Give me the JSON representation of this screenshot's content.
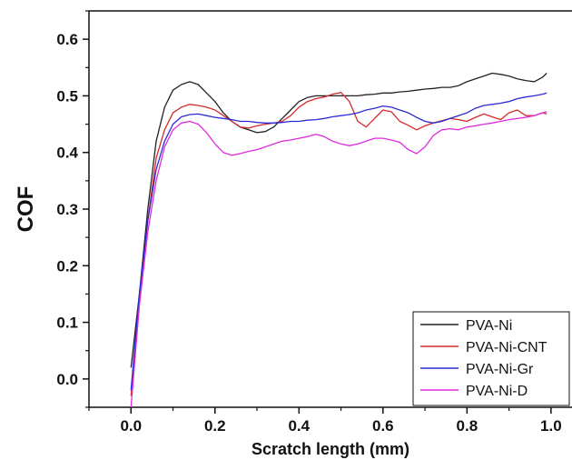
{
  "chart_data": {
    "type": "line",
    "title": "",
    "xlabel": "Scratch length (mm)",
    "ylabel": "COF",
    "xlim": [
      -0.1,
      1.05
    ],
    "ylim": [
      -0.05,
      0.65
    ],
    "xticks": [
      0.0,
      0.2,
      0.4,
      0.6,
      0.8,
      1.0
    ],
    "xtick_labels": [
      "0.0",
      "0.2",
      "0.4",
      "0.6",
      "0.8",
      "1.0"
    ],
    "yticks": [
      0.0,
      0.1,
      0.2,
      0.3,
      0.4,
      0.5,
      0.6
    ],
    "ytick_labels": [
      "0.0",
      "0.1",
      "0.2",
      "0.3",
      "0.4",
      "0.5",
      "0.6"
    ],
    "grid": false,
    "legend_position": "bottom-right",
    "series": [
      {
        "name": "PVA-Ni",
        "color": "#222222",
        "x": [
          0.0,
          0.02,
          0.04,
          0.06,
          0.08,
          0.1,
          0.12,
          0.14,
          0.16,
          0.18,
          0.2,
          0.22,
          0.24,
          0.26,
          0.28,
          0.3,
          0.32,
          0.34,
          0.36,
          0.38,
          0.4,
          0.42,
          0.44,
          0.46,
          0.48,
          0.5,
          0.52,
          0.54,
          0.56,
          0.58,
          0.6,
          0.62,
          0.64,
          0.66,
          0.68,
          0.7,
          0.72,
          0.74,
          0.76,
          0.78,
          0.8,
          0.82,
          0.84,
          0.86,
          0.88,
          0.9,
          0.92,
          0.94,
          0.96,
          0.98,
          0.99
        ],
        "y": [
          0.02,
          0.15,
          0.3,
          0.42,
          0.48,
          0.51,
          0.52,
          0.525,
          0.52,
          0.505,
          0.49,
          0.47,
          0.455,
          0.445,
          0.44,
          0.435,
          0.437,
          0.445,
          0.46,
          0.475,
          0.49,
          0.497,
          0.5,
          0.5,
          0.5,
          0.5,
          0.5,
          0.5,
          0.502,
          0.503,
          0.505,
          0.505,
          0.507,
          0.508,
          0.51,
          0.512,
          0.513,
          0.515,
          0.515,
          0.518,
          0.525,
          0.53,
          0.535,
          0.54,
          0.538,
          0.535,
          0.53,
          0.527,
          0.525,
          0.533,
          0.54
        ]
      },
      {
        "name": "PVA-Ni-CNT",
        "color": "#d62a2a",
        "x": [
          0.0,
          0.02,
          0.04,
          0.06,
          0.08,
          0.1,
          0.12,
          0.14,
          0.16,
          0.18,
          0.2,
          0.22,
          0.24,
          0.26,
          0.28,
          0.3,
          0.32,
          0.34,
          0.36,
          0.38,
          0.4,
          0.42,
          0.44,
          0.46,
          0.48,
          0.5,
          0.52,
          0.54,
          0.56,
          0.58,
          0.6,
          0.62,
          0.64,
          0.66,
          0.68,
          0.7,
          0.72,
          0.74,
          0.76,
          0.78,
          0.8,
          0.82,
          0.84,
          0.86,
          0.88,
          0.9,
          0.92,
          0.94,
          0.96,
          0.98,
          0.99
        ],
        "y": [
          -0.03,
          0.14,
          0.28,
          0.39,
          0.44,
          0.47,
          0.48,
          0.485,
          0.483,
          0.48,
          0.475,
          0.465,
          0.455,
          0.445,
          0.443,
          0.447,
          0.45,
          0.452,
          0.455,
          0.465,
          0.48,
          0.49,
          0.495,
          0.498,
          0.503,
          0.506,
          0.49,
          0.455,
          0.445,
          0.46,
          0.475,
          0.472,
          0.455,
          0.448,
          0.44,
          0.447,
          0.452,
          0.456,
          0.46,
          0.458,
          0.455,
          0.462,
          0.468,
          0.463,
          0.458,
          0.47,
          0.475,
          0.465,
          0.465,
          0.47,
          0.468
        ]
      },
      {
        "name": "PVA-Ni-Gr",
        "color": "#2b2bd6",
        "x": [
          0.0,
          0.02,
          0.04,
          0.06,
          0.08,
          0.1,
          0.12,
          0.14,
          0.16,
          0.18,
          0.2,
          0.22,
          0.24,
          0.26,
          0.28,
          0.3,
          0.32,
          0.34,
          0.36,
          0.38,
          0.4,
          0.42,
          0.44,
          0.46,
          0.48,
          0.5,
          0.52,
          0.54,
          0.56,
          0.58,
          0.6,
          0.62,
          0.64,
          0.66,
          0.68,
          0.7,
          0.72,
          0.74,
          0.76,
          0.78,
          0.8,
          0.82,
          0.84,
          0.86,
          0.88,
          0.9,
          0.92,
          0.94,
          0.96,
          0.98,
          0.99
        ],
        "y": [
          -0.02,
          0.15,
          0.28,
          0.37,
          0.42,
          0.45,
          0.463,
          0.467,
          0.468,
          0.465,
          0.462,
          0.46,
          0.458,
          0.455,
          0.455,
          0.453,
          0.452,
          0.452,
          0.453,
          0.455,
          0.455,
          0.457,
          0.458,
          0.46,
          0.463,
          0.465,
          0.467,
          0.47,
          0.475,
          0.478,
          0.482,
          0.48,
          0.475,
          0.47,
          0.462,
          0.455,
          0.452,
          0.455,
          0.46,
          0.465,
          0.47,
          0.478,
          0.483,
          0.485,
          0.487,
          0.49,
          0.495,
          0.498,
          0.5,
          0.503,
          0.505
        ]
      },
      {
        "name": "PVA-Ni-D",
        "color": "#e02ae0",
        "x": [
          0.0,
          0.02,
          0.04,
          0.06,
          0.08,
          0.1,
          0.12,
          0.14,
          0.16,
          0.18,
          0.2,
          0.22,
          0.24,
          0.26,
          0.28,
          0.3,
          0.32,
          0.34,
          0.36,
          0.38,
          0.4,
          0.42,
          0.44,
          0.46,
          0.48,
          0.5,
          0.52,
          0.54,
          0.56,
          0.58,
          0.6,
          0.62,
          0.64,
          0.66,
          0.68,
          0.7,
          0.72,
          0.74,
          0.76,
          0.78,
          0.8,
          0.82,
          0.84,
          0.86,
          0.88,
          0.9,
          0.92,
          0.94,
          0.96,
          0.98,
          0.99
        ],
        "y": [
          -0.05,
          0.13,
          0.26,
          0.35,
          0.41,
          0.44,
          0.452,
          0.455,
          0.45,
          0.435,
          0.415,
          0.4,
          0.395,
          0.398,
          0.402,
          0.405,
          0.41,
          0.415,
          0.42,
          0.422,
          0.425,
          0.428,
          0.432,
          0.428,
          0.42,
          0.415,
          0.412,
          0.415,
          0.42,
          0.425,
          0.425,
          0.422,
          0.418,
          0.405,
          0.398,
          0.41,
          0.43,
          0.44,
          0.442,
          0.44,
          0.445,
          0.447,
          0.45,
          0.452,
          0.455,
          0.458,
          0.46,
          0.462,
          0.465,
          0.47,
          0.472
        ]
      }
    ]
  }
}
